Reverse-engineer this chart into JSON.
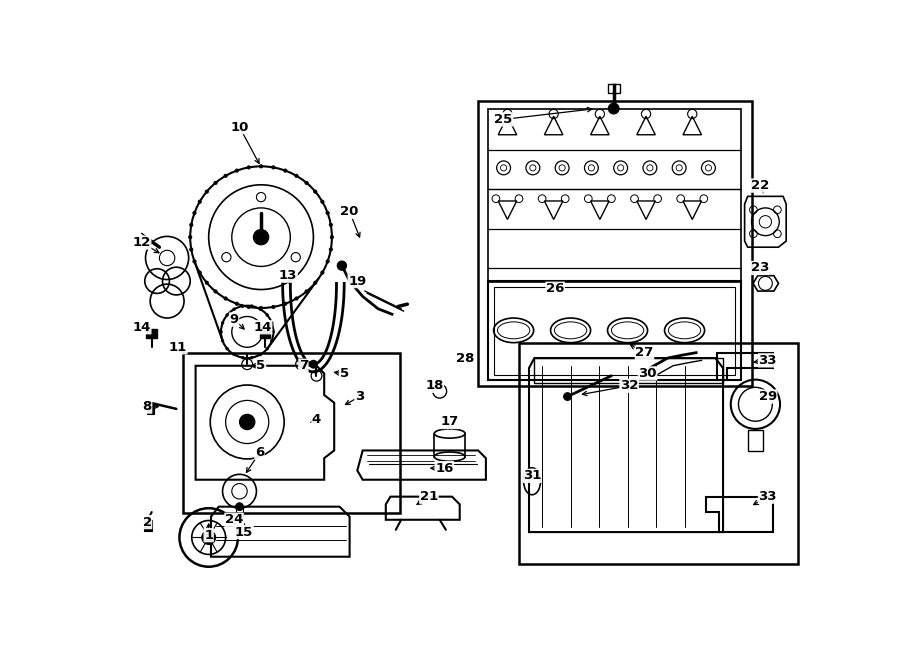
{
  "bg_color": "#ffffff",
  "line_color": "#000000",
  "fig_w": 9.0,
  "fig_h": 6.61,
  "xlim": [
    0,
    9.0
  ],
  "ylim": [
    0,
    6.61
  ],
  "labels": [
    [
      "1",
      1.22,
      5.92
    ],
    [
      "2",
      0.42,
      5.75
    ],
    [
      "3",
      3.18,
      4.12
    ],
    [
      "4",
      2.62,
      4.42
    ],
    [
      "5",
      1.9,
      3.72
    ],
    [
      "5",
      2.98,
      3.82
    ],
    [
      "6",
      1.88,
      4.85
    ],
    [
      "7",
      2.45,
      3.72
    ],
    [
      "8",
      0.42,
      4.25
    ],
    [
      "9",
      1.55,
      3.12
    ],
    [
      "10",
      1.62,
      0.62
    ],
    [
      "11",
      0.82,
      3.48
    ],
    [
      "12",
      0.35,
      2.12
    ],
    [
      "13",
      2.25,
      2.55
    ],
    [
      "14",
      0.35,
      3.22
    ],
    [
      "14",
      1.92,
      3.22
    ],
    [
      "15",
      1.68,
      5.88
    ],
    [
      "16",
      4.28,
      5.05
    ],
    [
      "17",
      4.35,
      4.45
    ],
    [
      "18",
      4.15,
      3.98
    ],
    [
      "19",
      3.15,
      2.62
    ],
    [
      "20",
      3.05,
      1.72
    ],
    [
      "21",
      4.08,
      5.42
    ],
    [
      "22",
      8.38,
      1.38
    ],
    [
      "23",
      8.38,
      2.45
    ],
    [
      "24",
      1.55,
      5.72
    ],
    [
      "25",
      5.05,
      0.52
    ],
    [
      "26",
      5.72,
      2.72
    ],
    [
      "27",
      6.88,
      3.55
    ],
    [
      "28",
      4.55,
      3.62
    ],
    [
      "29",
      8.48,
      4.12
    ],
    [
      "30",
      6.92,
      3.82
    ],
    [
      "31",
      5.42,
      5.15
    ],
    [
      "32",
      6.68,
      3.98
    ],
    [
      "33",
      8.48,
      3.65
    ],
    [
      "33",
      8.48,
      5.42
    ]
  ]
}
